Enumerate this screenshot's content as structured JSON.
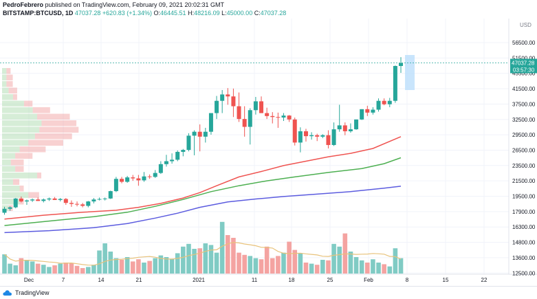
{
  "header": {
    "author": "PedroFebrero",
    "published_text": "published on TradingView.com, February 09, 2021 20:02:31 GMT",
    "symbol": "BITSTAMP:BTCUSD, 1D",
    "last": "47037.28",
    "change": "+620.83 (+1.34%)",
    "open_label": "O:",
    "open": "46445.51",
    "high_label": "H:",
    "high": "48216.09",
    "low_label": "L:",
    "low": "45000.00",
    "close_label": "C:",
    "close": "47037.28"
  },
  "chart": {
    "currency_label": "USD",
    "price_tag": "47037.28",
    "countdown_tag": "03:57:30",
    "colors": {
      "up": "#26a69a",
      "down": "#ef5350",
      "ma_red": "#ef5350",
      "ma_green": "#4caf50",
      "ma_blue": "#5b5bdf",
      "vol_ma": "#e8c27a",
      "vol_up": "#80cbc4",
      "vol_down": "#f4a3a1",
      "projection": "#bbdefb"
    }
  },
  "chart_data": {
    "type": "candlestick",
    "y_ticks": [
      "56500.00",
      "51500.00",
      "45500.00",
      "41500.00",
      "37500.00",
      "32500.00",
      "29500.00",
      "26500.00",
      "23500.00",
      "21500.00",
      "19500.00",
      "17900.00",
      "16300.00",
      "14800.00",
      "13600.00",
      "12500.00"
    ],
    "x_ticks": [
      "Dec",
      "7",
      "14",
      "21",
      "2021",
      "11",
      "18",
      "25",
      "Feb",
      "8",
      "15",
      "22"
    ],
    "candles": [
      [
        16.5,
        17.7,
        16.1,
        17.3
      ],
      [
        17.3,
        17.8,
        16.9,
        17.6
      ],
      [
        17.6,
        19.5,
        17.4,
        19.4
      ],
      [
        19.4,
        19.8,
        18.6,
        18.8
      ],
      [
        18.8,
        19.2,
        18.1,
        19.0
      ],
      [
        19.0,
        19.4,
        18.7,
        19.2
      ],
      [
        19.2,
        19.6,
        18.9,
        18.9
      ],
      [
        18.9,
        19.4,
        18.6,
        19.2
      ],
      [
        19.2,
        19.6,
        18.9,
        19.4
      ],
      [
        19.4,
        19.7,
        19.1,
        19.1
      ],
      [
        19.1,
        19.5,
        18.8,
        19.3
      ],
      [
        19.3,
        19.5,
        18.1,
        18.5
      ],
      [
        18.5,
        19.0,
        17.7,
        18.3
      ],
      [
        18.3,
        18.8,
        17.8,
        18.2
      ],
      [
        18.2,
        18.5,
        17.6,
        17.9
      ],
      [
        17.9,
        18.9,
        17.6,
        18.8
      ],
      [
        18.8,
        19.5,
        18.4,
        19.2
      ],
      [
        19.2,
        19.6,
        19.0,
        19.3
      ],
      [
        19.3,
        19.6,
        19.0,
        19.4
      ],
      [
        19.4,
        21.0,
        19.3,
        20.9
      ],
      [
        20.9,
        23.8,
        20.7,
        23.4
      ],
      [
        23.4,
        23.8,
        22.5,
        22.8
      ],
      [
        22.8,
        24.0,
        22.6,
        23.7
      ],
      [
        23.7,
        24.2,
        23.0,
        23.5
      ],
      [
        23.5,
        24.2,
        22.0,
        23.1
      ],
      [
        23.1,
        24.8,
        22.8,
        23.9
      ],
      [
        23.9,
        24.3,
        23.4,
        23.8
      ],
      [
        23.8,
        25.2,
        23.6,
        24.6
      ],
      [
        24.6,
        27.0,
        24.4,
        26.4
      ],
      [
        26.4,
        28.3,
        25.9,
        27.0
      ],
      [
        27.0,
        28.6,
        26.5,
        27.3
      ],
      [
        27.3,
        29.2,
        27.0,
        28.9
      ],
      [
        28.9,
        29.5,
        28.0,
        29.3
      ],
      [
        29.3,
        32.7,
        29.0,
        32.2
      ],
      [
        32.2,
        33.3,
        28.2,
        33.0
      ],
      [
        33.0,
        34.5,
        29.0,
        32.0
      ],
      [
        32.0,
        33.8,
        30.8,
        33.0
      ],
      [
        33.0,
        36.8,
        32.4,
        36.8
      ],
      [
        36.8,
        40.3,
        35.6,
        39.3
      ],
      [
        39.3,
        41.5,
        36.8,
        40.6
      ],
      [
        40.6,
        41.9,
        38.5,
        40.2
      ],
      [
        40.2,
        41.8,
        36.0,
        38.2
      ],
      [
        38.2,
        41.0,
        35.0,
        35.6
      ],
      [
        35.6,
        38.2,
        32.0,
        34.0
      ],
      [
        34.0,
        37.8,
        30.4,
        37.4
      ],
      [
        37.4,
        40.1,
        36.5,
        39.2
      ],
      [
        39.2,
        40.2,
        36.8,
        36.8
      ],
      [
        36.8,
        37.9,
        35.6,
        36.2
      ],
      [
        36.2,
        37.0,
        34.7,
        36.0
      ],
      [
        36.0,
        36.9,
        33.8,
        35.9
      ],
      [
        35.9,
        36.8,
        35.2,
        36.3
      ],
      [
        36.3,
        36.4,
        35.0,
        35.5
      ],
      [
        35.5,
        35.9,
        30.2,
        30.8
      ],
      [
        30.8,
        33.9,
        28.8,
        33.1
      ],
      [
        33.1,
        33.6,
        31.0,
        32.1
      ],
      [
        32.1,
        32.9,
        31.4,
        32.3
      ],
      [
        32.3,
        32.6,
        31.1,
        32.0
      ],
      [
        32.0,
        32.5,
        31.7,
        32.3
      ],
      [
        32.3,
        33.3,
        29.6,
        30.3
      ],
      [
        30.3,
        34.9,
        30.1,
        33.5
      ],
      [
        33.5,
        38.5,
        33.0,
        34.3
      ],
      [
        34.3,
        34.9,
        32.3,
        33.1
      ],
      [
        33.1,
        34.7,
        32.8,
        33.5
      ],
      [
        33.5,
        35.5,
        33.4,
        35.5
      ],
      [
        35.5,
        37.6,
        35.4,
        37.6
      ],
      [
        37.6,
        38.3,
        36.2,
        36.9
      ],
      [
        36.9,
        38.0,
        36.5,
        37.5
      ],
      [
        37.5,
        39.8,
        37.1,
        39.3
      ],
      [
        39.3,
        39.8,
        38.4,
        38.6
      ],
      [
        38.6,
        39.9,
        38.0,
        39.3
      ],
      [
        39.3,
        46.5,
        38.9,
        46.4
      ],
      [
        46.4,
        48.2,
        45.0,
        47.0
      ]
    ],
    "ma_fast": [
      [
        0,
        15.2
      ],
      [
        7,
        16.0
      ],
      [
        14,
        16.6
      ],
      [
        20,
        17.0
      ],
      [
        24,
        17.6
      ],
      [
        28,
        18.4
      ],
      [
        32,
        19.5
      ],
      [
        35,
        20.6
      ],
      [
        38,
        22.0
      ],
      [
        42,
        23.8
      ],
      [
        46,
        24.9
      ],
      [
        50,
        26.1
      ],
      [
        54,
        27.0
      ],
      [
        58,
        27.9
      ],
      [
        62,
        28.6
      ],
      [
        66,
        29.6
      ],
      [
        71,
        32.0
      ]
    ],
    "ma_mid": [
      [
        0,
        13.9
      ],
      [
        8,
        14.8
      ],
      [
        16,
        15.7
      ],
      [
        22,
        16.6
      ],
      [
        27,
        17.8
      ],
      [
        32,
        19.2
      ],
      [
        37,
        20.8
      ],
      [
        42,
        22.0
      ],
      [
        47,
        23.0
      ],
      [
        52,
        23.8
      ],
      [
        58,
        24.7
      ],
      [
        64,
        25.5
      ],
      [
        68,
        26.5
      ],
      [
        71,
        27.7
      ]
    ],
    "ma_slow": [
      [
        0,
        12.45
      ],
      [
        8,
        12.85
      ],
      [
        16,
        13.45
      ],
      [
        22,
        14.3
      ],
      [
        27,
        15.4
      ],
      [
        31,
        16.4
      ],
      [
        35,
        17.6
      ],
      [
        40,
        18.7
      ],
      [
        45,
        19.3
      ],
      [
        50,
        19.8
      ],
      [
        56,
        20.3
      ],
      [
        62,
        20.8
      ],
      [
        68,
        21.5
      ],
      [
        71,
        21.9
      ]
    ],
    "volume": [
      0.35,
      0.18,
      0.15,
      0.28,
      0.25,
      0.22,
      0.18,
      0.16,
      0.12,
      0.15,
      0.18,
      0.2,
      0.19,
      0.14,
      0.1,
      0.12,
      0.16,
      0.42,
      0.55,
      0.4,
      0.28,
      0.25,
      0.3,
      0.22,
      0.26,
      0.2,
      0.23,
      0.28,
      0.33,
      0.3,
      0.27,
      0.37,
      0.49,
      0.54,
      0.45,
      0.46,
      0.55,
      0.52,
      0.38,
      0.94,
      0.7,
      0.65,
      0.38,
      0.34,
      0.32,
      0.28,
      0.26,
      0.49,
      0.28,
      0.32,
      0.38,
      0.58,
      0.43,
      0.37,
      0.2,
      0.18,
      0.16,
      0.25,
      0.24,
      0.54,
      0.49,
      0.73,
      0.4,
      0.3,
      0.24,
      0.2,
      0.26,
      0.2,
      0.17,
      0.13,
      0.46,
      0.28
    ],
    "volume_profile": [
      [
        47.0,
        0.02,
        0.02
      ],
      [
        45.5,
        0.02,
        0.03
      ],
      [
        44.0,
        0.02,
        0.03
      ],
      [
        42.5,
        0.03,
        0.05
      ],
      [
        41.0,
        0.05,
        0.05
      ],
      [
        39.5,
        0.1,
        0.12
      ],
      [
        38.0,
        0.14,
        0.2
      ],
      [
        36.5,
        0.16,
        0.29
      ],
      [
        35.0,
        0.18,
        0.32
      ],
      [
        33.5,
        0.17,
        0.33
      ],
      [
        32.0,
        0.15,
        0.3
      ],
      [
        30.5,
        0.12,
        0.26
      ],
      [
        29.0,
        0.08,
        0.18
      ],
      [
        27.5,
        0.06,
        0.12
      ],
      [
        26.0,
        0.04,
        0.08
      ],
      [
        24.5,
        0.06,
        0.08
      ],
      [
        23.0,
        0.16,
        0.16
      ],
      [
        21.5,
        0.05,
        0.06
      ],
      [
        20.0,
        0.08,
        0.07
      ],
      [
        18.5,
        0.12,
        0.15
      ],
      [
        17.0,
        0.08,
        0.08
      ],
      [
        15.5,
        0.03,
        0.02
      ]
    ]
  }
}
